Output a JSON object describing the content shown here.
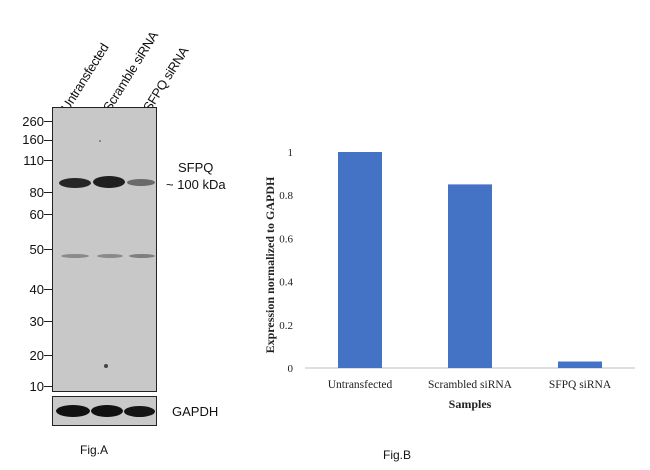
{
  "fig_a": {
    "lane_labels": [
      "Untransfected",
      "Scramble siRNA",
      "SFPQ siRNA"
    ],
    "markers": [
      "260",
      "160",
      "110",
      "80",
      "60",
      "50",
      "40",
      "30",
      "20",
      "10"
    ],
    "target_label": "SFPQ",
    "target_size": "~ 100 kDa",
    "loading_control": "GAPDH",
    "caption": "Fig.A"
  },
  "fig_b": {
    "caption": "Fig.B"
  },
  "chart_data": {
    "type": "bar",
    "categories": [
      "Untransfected",
      "Scrambled siRNA",
      "SFPQ siRNA"
    ],
    "values": [
      1.0,
      0.85,
      0.03
    ],
    "xlabel": "Samples",
    "ylabel": "Expression normalized to GAPDH",
    "ylim": [
      0,
      1
    ],
    "yticks": [
      "0",
      "0.2",
      "0.4",
      "0.6",
      "0.8",
      "1"
    ],
    "bar_color": "#4472C4",
    "grid": false,
    "legend": "none"
  }
}
